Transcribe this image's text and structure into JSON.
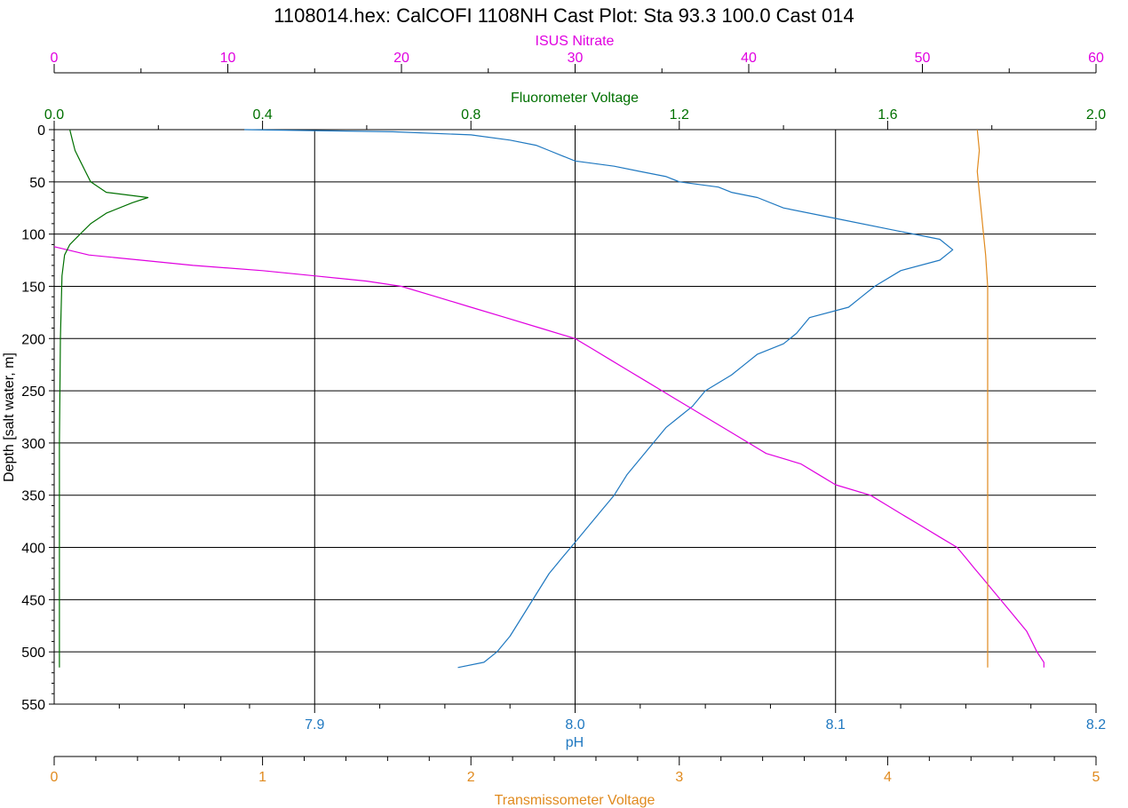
{
  "chart_data": {
    "type": "line",
    "title": "1108014.hex: CalCOFI 1108NH Cast Plot: Sta 93.3 100.0 Cast 014",
    "grid": true,
    "y_axis": {
      "label": "Depth [salt water, m]",
      "range": [
        0,
        550
      ],
      "inverted": true,
      "ticks": [
        0,
        50,
        100,
        150,
        200,
        250,
        300,
        350,
        400,
        450,
        500,
        550
      ],
      "tick_labels": [
        "0",
        "50",
        "100",
        "150",
        "200",
        "250",
        "300",
        "350",
        "400",
        "450",
        "500",
        "550"
      ]
    },
    "x_axes": [
      {
        "id": "nitrate",
        "label": "ISUS Nitrate",
        "position": "top-outer",
        "color": "#e000e0",
        "range": [
          0,
          60
        ],
        "ticks": [
          0,
          10,
          20,
          30,
          40,
          50,
          60
        ],
        "tick_labels": [
          "0",
          "10",
          "20",
          "30",
          "40",
          "50",
          "60"
        ]
      },
      {
        "id": "fluor",
        "label": "Fluorometer Voltage",
        "position": "top-inner",
        "color": "#007000",
        "range": [
          0,
          2
        ],
        "ticks": [
          0,
          0.4,
          0.8,
          1.2,
          1.6,
          2.0
        ],
        "tick_labels": [
          "0.0",
          "0.4",
          "0.8",
          "1.2",
          "1.6",
          "2.0"
        ]
      },
      {
        "id": "ph",
        "label": "pH",
        "position": "bottom-inner",
        "color": "#1f78c0",
        "range": [
          7.8,
          8.2
        ],
        "ticks": [
          7.9,
          8.0,
          8.1,
          8.2
        ],
        "tick_labels": [
          "7.9",
          "8.0",
          "8.1",
          "8.2"
        ]
      },
      {
        "id": "trans",
        "label": "Transmissometer Voltage",
        "position": "bottom-outer",
        "color": "#e08a1e",
        "range": [
          0,
          5
        ],
        "ticks": [
          0,
          1,
          2,
          3,
          4,
          5
        ],
        "tick_labels": [
          "0",
          "1",
          "2",
          "3",
          "4",
          "5"
        ]
      }
    ],
    "series": [
      {
        "name": "pH",
        "axis": "ph",
        "color": "#1f78c0",
        "points": [
          [
            7.873,
            0
          ],
          [
            7.93,
            2
          ],
          [
            7.96,
            5
          ],
          [
            7.975,
            10
          ],
          [
            7.985,
            15
          ],
          [
            7.99,
            20
          ],
          [
            7.995,
            25
          ],
          [
            8.0,
            30
          ],
          [
            8.015,
            35
          ],
          [
            8.025,
            40
          ],
          [
            8.035,
            45
          ],
          [
            8.04,
            50
          ],
          [
            8.055,
            55
          ],
          [
            8.06,
            60
          ],
          [
            8.07,
            65
          ],
          [
            8.08,
            75
          ],
          [
            8.1,
            85
          ],
          [
            8.12,
            95
          ],
          [
            8.14,
            105
          ],
          [
            8.145,
            115
          ],
          [
            8.14,
            125
          ],
          [
            8.125,
            135
          ],
          [
            8.115,
            150
          ],
          [
            8.11,
            160
          ],
          [
            8.105,
            170
          ],
          [
            8.09,
            180
          ],
          [
            8.085,
            195
          ],
          [
            8.08,
            205
          ],
          [
            8.07,
            215
          ],
          [
            8.065,
            225
          ],
          [
            8.06,
            235
          ],
          [
            8.05,
            250
          ],
          [
            8.045,
            265
          ],
          [
            8.04,
            275
          ],
          [
            8.035,
            285
          ],
          [
            8.03,
            300
          ],
          [
            8.025,
            315
          ],
          [
            8.02,
            330
          ],
          [
            8.015,
            350
          ],
          [
            8.01,
            365
          ],
          [
            8.005,
            380
          ],
          [
            8.0,
            395
          ],
          [
            7.995,
            410
          ],
          [
            7.99,
            425
          ],
          [
            7.985,
            445
          ],
          [
            7.98,
            465
          ],
          [
            7.975,
            485
          ],
          [
            7.97,
            500
          ],
          [
            7.965,
            510
          ],
          [
            7.955,
            515
          ]
        ]
      },
      {
        "name": "ISUS Nitrate",
        "axis": "nitrate",
        "color": "#e000e0",
        "points": [
          [
            0,
            112
          ],
          [
            2,
            120
          ],
          [
            5,
            125
          ],
          [
            8,
            130
          ],
          [
            12,
            135
          ],
          [
            15,
            140
          ],
          [
            18,
            145
          ],
          [
            20,
            150
          ],
          [
            22,
            160
          ],
          [
            24,
            170
          ],
          [
            26,
            180
          ],
          [
            28,
            190
          ],
          [
            30,
            200
          ],
          [
            31,
            210
          ],
          [
            32,
            220
          ],
          [
            33,
            230
          ],
          [
            34,
            240
          ],
          [
            35,
            250
          ],
          [
            36,
            260
          ],
          [
            37,
            270
          ],
          [
            38,
            280
          ],
          [
            39,
            290
          ],
          [
            40,
            300
          ],
          [
            41,
            310
          ],
          [
            43,
            320
          ],
          [
            44,
            330
          ],
          [
            45,
            340
          ],
          [
            47,
            350
          ],
          [
            48,
            360
          ],
          [
            49,
            370
          ],
          [
            50,
            380
          ],
          [
            51,
            390
          ],
          [
            52,
            400
          ],
          [
            52.5,
            410
          ],
          [
            53,
            420
          ],
          [
            53.5,
            430
          ],
          [
            54,
            440
          ],
          [
            54.5,
            450
          ],
          [
            55,
            460
          ],
          [
            55.5,
            470
          ],
          [
            56,
            480
          ],
          [
            56.3,
            490
          ],
          [
            56.6,
            500
          ],
          [
            57,
            510
          ],
          [
            57,
            515
          ]
        ]
      },
      {
        "name": "Fluorometer Voltage",
        "axis": "fluor",
        "color": "#007000",
        "points": [
          [
            0.03,
            0
          ],
          [
            0.035,
            10
          ],
          [
            0.04,
            20
          ],
          [
            0.05,
            30
          ],
          [
            0.06,
            40
          ],
          [
            0.07,
            50
          ],
          [
            0.1,
            60
          ],
          [
            0.18,
            65
          ],
          [
            0.15,
            70
          ],
          [
            0.1,
            80
          ],
          [
            0.07,
            90
          ],
          [
            0.05,
            100
          ],
          [
            0.03,
            110
          ],
          [
            0.02,
            120
          ],
          [
            0.015,
            140
          ],
          [
            0.012,
            200
          ],
          [
            0.01,
            300
          ],
          [
            0.01,
            400
          ],
          [
            0.01,
            515
          ]
        ]
      },
      {
        "name": "Transmissometer Voltage",
        "axis": "trans",
        "color": "#e08a1e",
        "points": [
          [
            4.43,
            0
          ],
          [
            4.44,
            20
          ],
          [
            4.43,
            40
          ],
          [
            4.44,
            60
          ],
          [
            4.45,
            80
          ],
          [
            4.46,
            100
          ],
          [
            4.47,
            120
          ],
          [
            4.48,
            150
          ],
          [
            4.48,
            200
          ],
          [
            4.48,
            300
          ],
          [
            4.48,
            400
          ],
          [
            4.48,
            450
          ],
          [
            4.48,
            515
          ]
        ]
      }
    ]
  }
}
